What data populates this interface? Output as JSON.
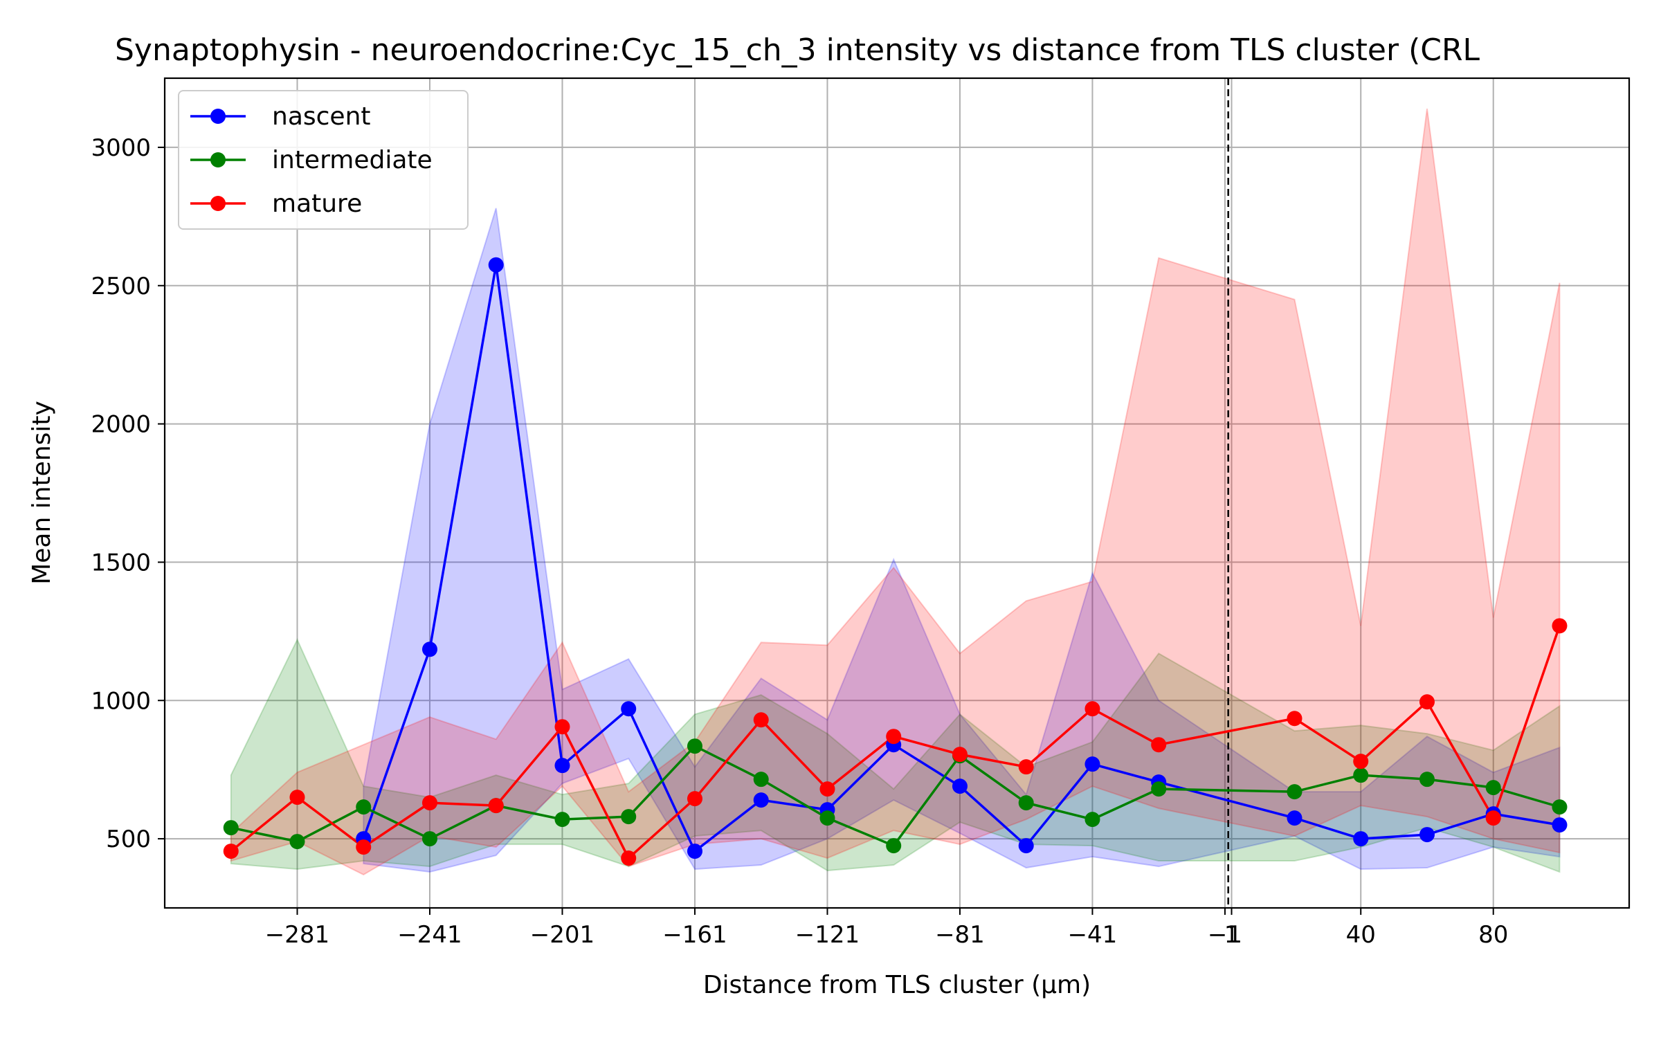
{
  "chart_data": {
    "type": "line",
    "title": "Synaptophysin - neuroendocrine:Cyc_15_ch_3 intensity vs distance from TLS cluster (CRL",
    "xlabel": "Distance from TLS cluster (μm)",
    "ylabel": "Mean intensity",
    "xlim": [
      -321,
      121
    ],
    "ylim": [
      250,
      3250
    ],
    "xticks": [
      -281,
      -241,
      -201,
      -161,
      -121,
      -81,
      -41,
      -1,
      1,
      40,
      80
    ],
    "xtick_labels": [
      "−281",
      "−241",
      "−201",
      "−161",
      "−121",
      "−81",
      "−41",
      "−1",
      "1",
      "40",
      "80"
    ],
    "yticks": [
      500,
      1000,
      1500,
      2000,
      2500,
      3000
    ],
    "ytick_labels": [
      "500",
      "1000",
      "1500",
      "2000",
      "2500",
      "3000"
    ],
    "grid": true,
    "legend_position": "upper-left",
    "reference_line": {
      "x": 0,
      "style": "dashed",
      "color": "#000000"
    },
    "series": [
      {
        "name": "nascent",
        "color": "#0000ff",
        "x": [
          -261,
          -241,
          -221,
          -201,
          -181,
          -161,
          -141,
          -121,
          -101,
          -81,
          -61,
          -41,
          -21,
          20,
          40,
          60,
          80,
          100
        ],
        "y": [
          500,
          1185,
          2575,
          765,
          970,
          455,
          640,
          605,
          840,
          690,
          475,
          770,
          705,
          575,
          500,
          515,
          590,
          550
        ],
        "lower": [
          410,
          380,
          440,
          700,
          790,
          390,
          405,
          500,
          640,
          520,
          395,
          435,
          400,
          510,
          390,
          395,
          470,
          435
        ],
        "upper": [
          690,
          2000,
          2780,
          1040,
          1150,
          760,
          1080,
          930,
          1510,
          950,
          660,
          1460,
          1000,
          670,
          670,
          870,
          740,
          830
        ]
      },
      {
        "name": "intermediate",
        "color": "#008000",
        "x": [
          -301,
          -281,
          -261,
          -241,
          -221,
          -201,
          -181,
          -161,
          -141,
          -121,
          -101,
          -81,
          -61,
          -41,
          -21,
          20,
          40,
          60,
          80,
          100
        ],
        "y": [
          540,
          490,
          615,
          500,
          620,
          570,
          580,
          835,
          715,
          575,
          475,
          800,
          630,
          570,
          680,
          670,
          730,
          715,
          685,
          615
        ],
        "lower": [
          410,
          390,
          420,
          400,
          480,
          480,
          400,
          510,
          530,
          385,
          405,
          560,
          480,
          475,
          420,
          420,
          470,
          540,
          470,
          380
        ],
        "upper": [
          730,
          1220,
          690,
          650,
          730,
          660,
          700,
          950,
          1020,
          880,
          680,
          950,
          760,
          850,
          1170,
          890,
          910,
          880,
          820,
          980
        ]
      },
      {
        "name": "mature",
        "color": "#ff0000",
        "x": [
          -301,
          -281,
          -261,
          -241,
          -221,
          -201,
          -181,
          -161,
          -141,
          -121,
          -101,
          -81,
          -61,
          -41,
          -21,
          20,
          40,
          60,
          80,
          100
        ],
        "y": [
          455,
          650,
          470,
          630,
          620,
          905,
          430,
          645,
          930,
          680,
          870,
          805,
          760,
          970,
          840,
          935,
          780,
          995,
          575,
          1270
        ],
        "lower": [
          420,
          490,
          370,
          510,
          470,
          690,
          400,
          480,
          500,
          430,
          530,
          480,
          570,
          690,
          610,
          510,
          620,
          580,
          500,
          450
        ],
        "upper": [
          520,
          740,
          840,
          940,
          860,
          1210,
          670,
          850,
          1210,
          1200,
          1480,
          1170,
          1360,
          1430,
          2600,
          2450,
          1270,
          3140,
          1300,
          2510
        ]
      }
    ]
  }
}
